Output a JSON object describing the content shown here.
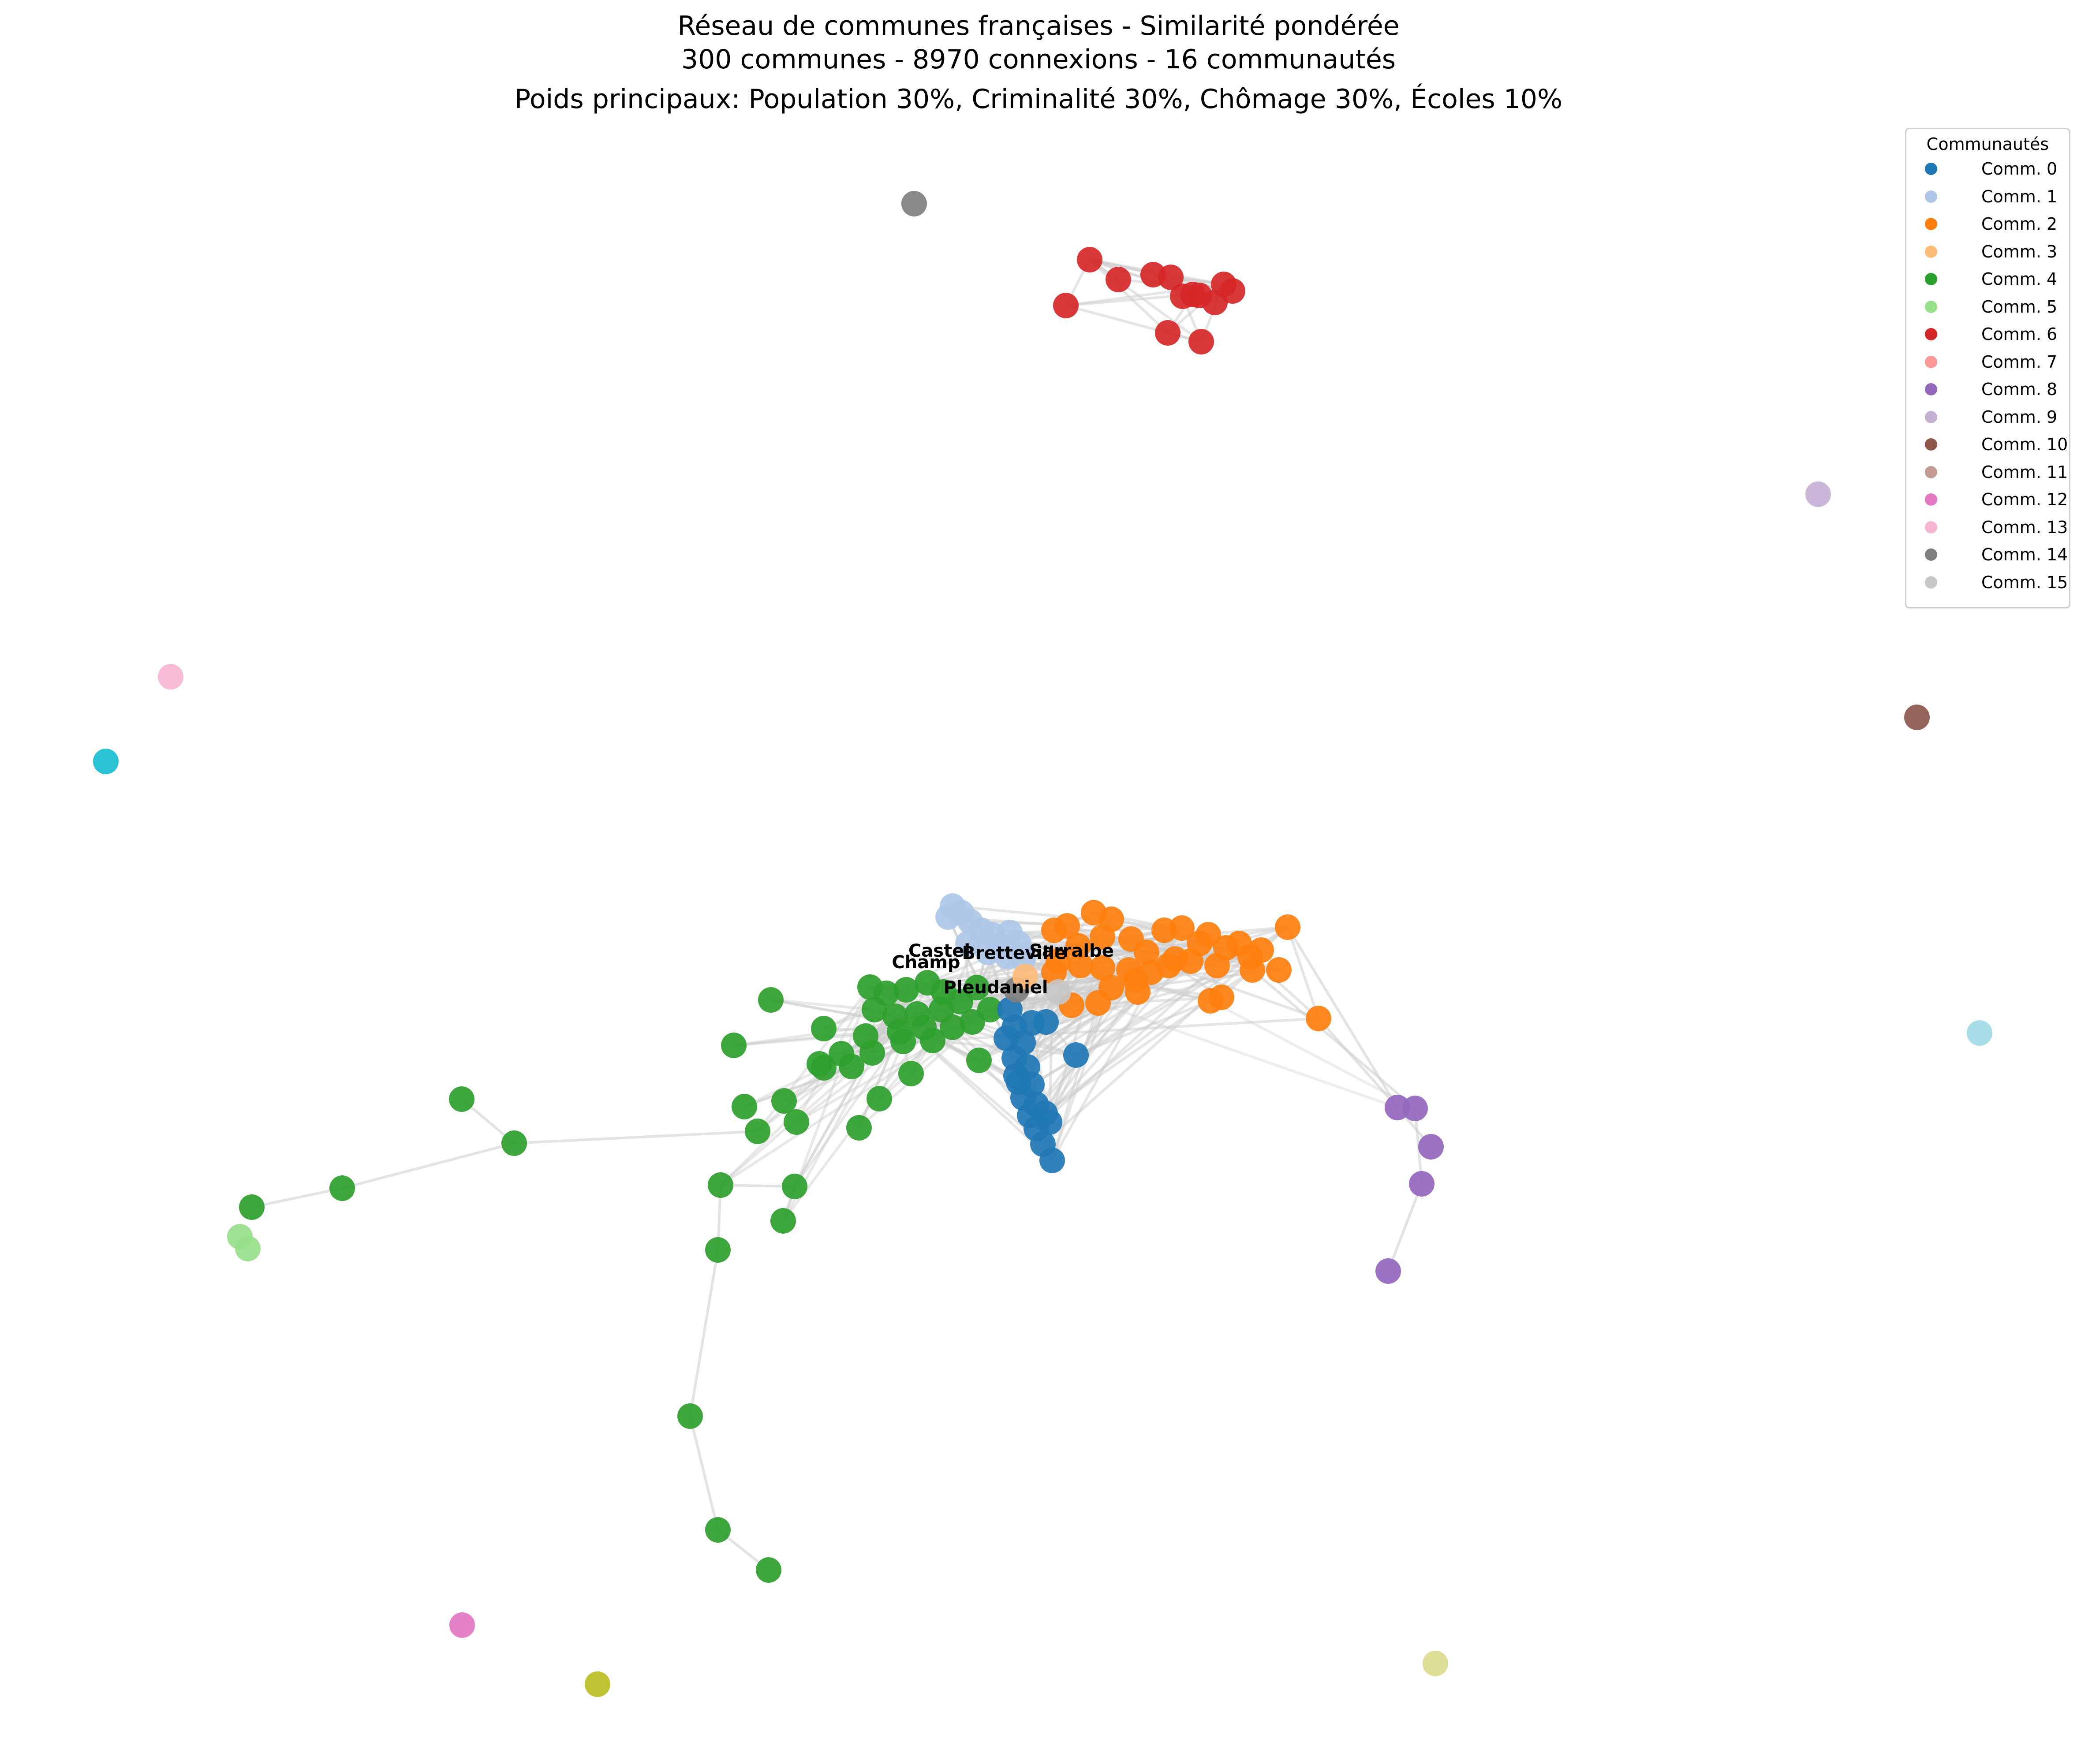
{
  "title": {
    "line1": "Réseau de communes françaises - Similarité pondérée",
    "line2": "300 communes - 8970 connexions - 16 communautés",
    "line3": "Poids principaux: Population 30%, Criminalité 30%, Chômage 30%, Écoles 10%"
  },
  "legend": {
    "title": "Communautés",
    "items": [
      {
        "label": "Comm. 0",
        "color": "#1f77b4"
      },
      {
        "label": "Comm. 1",
        "color": "#aec7e8"
      },
      {
        "label": "Comm. 2",
        "color": "#ff7f0e"
      },
      {
        "label": "Comm. 3",
        "color": "#ffbb78"
      },
      {
        "label": "Comm. 4",
        "color": "#2ca02c"
      },
      {
        "label": "Comm. 5",
        "color": "#98df8a"
      },
      {
        "label": "Comm. 6",
        "color": "#d62728"
      },
      {
        "label": "Comm. 7",
        "color": "#ff9896"
      },
      {
        "label": "Comm. 8",
        "color": "#9467bd"
      },
      {
        "label": "Comm. 9",
        "color": "#c5b0d5"
      },
      {
        "label": "Comm. 10",
        "color": "#8c564b"
      },
      {
        "label": "Comm. 11",
        "color": "#c49c94"
      },
      {
        "label": "Comm. 12",
        "color": "#e377c2"
      },
      {
        "label": "Comm. 13",
        "color": "#f7b6d2"
      },
      {
        "label": "Comm. 14",
        "color": "#7f7f7f"
      },
      {
        "label": "Comm. 15",
        "color": "#c7c7c7"
      }
    ]
  },
  "node_labels": [
    {
      "text": "Pleudaniel",
      "community": 4
    },
    {
      "text": "Champ",
      "community": 4
    },
    {
      "text": "Castel",
      "community": 4
    },
    {
      "text": "Bretteville",
      "community": 1
    },
    {
      "text": "Sarralbe",
      "community": 2
    }
  ],
  "extra_colors": {
    "cyan_isolate": "#17becf",
    "olive_isolate": "#bcbd22",
    "light_cyan_isolate": "#9edae5",
    "khaki_isolate": "#dbdb8d",
    "edge": "#cccccc"
  }
}
